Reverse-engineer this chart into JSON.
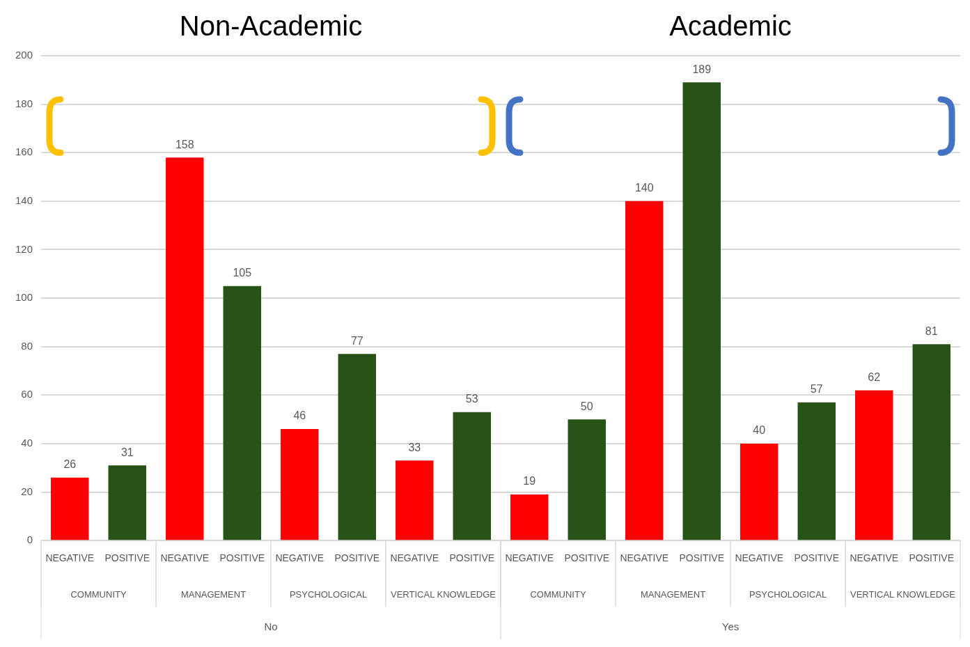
{
  "chart_data": {
    "type": "bar",
    "categories": [
      "NEGATIVE",
      "POSITIVE",
      "NEGATIVE",
      "POSITIVE",
      "NEGATIVE",
      "POSITIVE",
      "NEGATIVE",
      "POSITIVE",
      "NEGATIVE",
      "POSITIVE",
      "NEGATIVE",
      "POSITIVE",
      "NEGATIVE",
      "POSITIVE",
      "NEGATIVE",
      "POSITIVE"
    ],
    "values": [
      26,
      31,
      158,
      105,
      46,
      77,
      33,
      53,
      19,
      50,
      140,
      189,
      40,
      57,
      62,
      81
    ],
    "colors": [
      "#ff0000",
      "#275317",
      "#ff0000",
      "#275317",
      "#ff0000",
      "#275317",
      "#ff0000",
      "#275317",
      "#ff0000",
      "#275317",
      "#ff0000",
      "#275317",
      "#ff0000",
      "#275317",
      "#ff0000",
      "#275317"
    ],
    "ylim": [
      0,
      200
    ],
    "yticks": [
      0,
      20,
      40,
      60,
      80,
      100,
      120,
      140,
      160,
      180,
      200
    ],
    "grid": "y",
    "legend": false,
    "data_labels": true,
    "annotations": [
      "Non-Academic",
      "Academic",
      "COMMUNITY",
      "MANAGEMENT",
      "PSYCHOLOGICAL",
      "VERTICAL KNOWLEDGE",
      "COMMUNITY",
      "MANAGEMENT",
      "PSYCHOLOGICAL",
      "VERTICAL KNOWLEDGE",
      "No",
      "Yes"
    ]
  }
}
